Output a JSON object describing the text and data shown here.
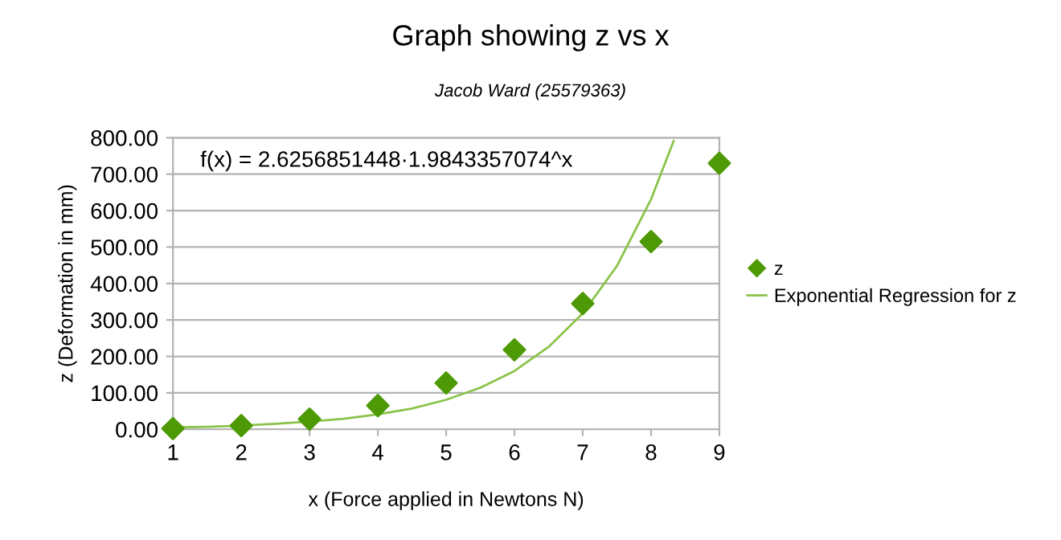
{
  "chart_data": {
    "type": "scatter",
    "title": "Graph showing z vs x",
    "subtitle": "Jacob Ward (25579363)",
    "xlabel": "x (Force applied in Newtons N)",
    "ylabel": "z (Deformation in mm)",
    "annotations": [
      "f(x) = 2.6256851448·1.9843357074^x"
    ],
    "series": [
      {
        "name": "z",
        "color": "#4e9a06",
        "marker": "diamond",
        "x": [
          1,
          2,
          3,
          4,
          5,
          6,
          7,
          8,
          9
        ],
        "values": [
          2,
          10,
          28,
          65,
          127,
          218,
          345,
          515,
          730
        ]
      },
      {
        "name": "Exponential Regression for z",
        "type": "line",
        "color": "#8bc34a",
        "marker": "none",
        "line_style": "solid",
        "x": [
          1,
          1.5,
          2,
          2.5,
          3,
          3.5,
          4,
          4.5,
          5,
          5.5,
          6,
          6.5,
          7,
          7.5,
          8,
          8.33
        ],
        "values": [
          5,
          7,
          10,
          15,
          21,
          29,
          41,
          57,
          81,
          114,
          160,
          226,
          318,
          448,
          631,
          791
        ]
      }
    ],
    "xlim": [
      1,
      9
    ],
    "xticks": [
      1,
      2,
      3,
      4,
      5,
      6,
      7,
      8,
      9
    ],
    "ylim": [
      0,
      800
    ],
    "yticks": [
      {
        "value": 0,
        "label": "0.00"
      },
      {
        "value": 100,
        "label": "100.00"
      },
      {
        "value": 200,
        "label": "200.00"
      },
      {
        "value": 300,
        "label": "300.00"
      },
      {
        "value": 400,
        "label": "400.00"
      },
      {
        "value": 500,
        "label": "500.00"
      },
      {
        "value": 600,
        "label": "600.00"
      },
      {
        "value": 700,
        "label": "700.00"
      },
      {
        "value": 800,
        "label": "800.00"
      }
    ],
    "grid": "y",
    "legend": "right"
  }
}
